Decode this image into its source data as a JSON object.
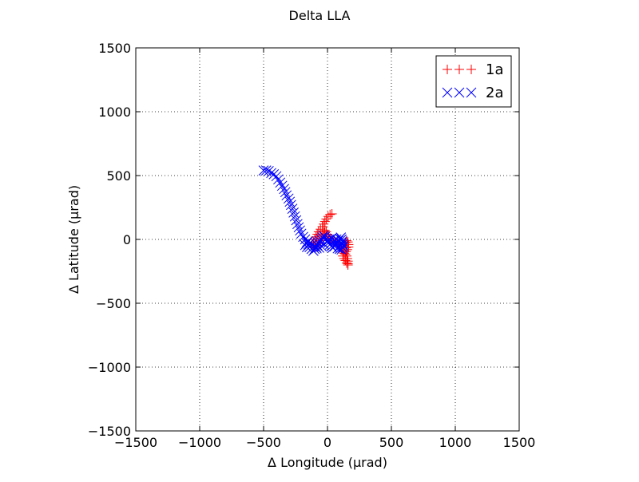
{
  "chart_data": {
    "type": "scatter",
    "title": "Delta LLA",
    "xlabel": "Δ Longitude (μrad)",
    "ylabel": "Δ Latitude (μrad)",
    "xlim": [
      -1500,
      1500
    ],
    "ylim": [
      -1500,
      1500
    ],
    "xticks": [
      -1500,
      -1000,
      -500,
      0,
      500,
      1000,
      1500
    ],
    "yticks": [
      -1500,
      -1000,
      -500,
      0,
      500,
      1000,
      1500
    ],
    "xtick_labels": [
      "−1500",
      "−1000",
      "−500",
      "0",
      "500",
      "1000",
      "1500"
    ],
    "ytick_labels": [
      "−1500",
      "−1000",
      "−500",
      "0",
      "500",
      "1000",
      "1500"
    ],
    "grid": true,
    "legend_position": "top-right",
    "series": [
      {
        "name": "1a",
        "marker": "plus",
        "color": "#ff0000",
        "points": [
          [
            35,
            200
          ],
          [
            20,
            195
          ],
          [
            5,
            180
          ],
          [
            -10,
            160
          ],
          [
            -20,
            140
          ],
          [
            -30,
            120
          ],
          [
            -40,
            100
          ],
          [
            -55,
            80
          ],
          [
            -70,
            60
          ],
          [
            -80,
            40
          ],
          [
            -90,
            20
          ],
          [
            -100,
            0
          ],
          [
            -110,
            -20
          ],
          [
            -120,
            -40
          ],
          [
            -110,
            -60
          ],
          [
            -95,
            -60
          ],
          [
            -80,
            -50
          ],
          [
            -70,
            -30
          ],
          [
            -55,
            -10
          ],
          [
            -45,
            10
          ],
          [
            -35,
            30
          ],
          [
            -25,
            50
          ],
          [
            -20,
            70
          ],
          [
            -10,
            60
          ],
          [
            0,
            40
          ],
          [
            10,
            20
          ],
          [
            20,
            10
          ],
          [
            30,
            0
          ],
          [
            45,
            -10
          ],
          [
            60,
            -20
          ],
          [
            75,
            -30
          ],
          [
            90,
            -40
          ],
          [
            100,
            -55
          ],
          [
            110,
            -70
          ],
          [
            120,
            -85
          ],
          [
            130,
            -100
          ],
          [
            140,
            -115
          ],
          [
            150,
            -130
          ],
          [
            155,
            -150
          ],
          [
            160,
            -170
          ],
          [
            160,
            -190
          ],
          [
            160,
            -200
          ],
          [
            150,
            -185
          ],
          [
            140,
            -165
          ],
          [
            130,
            -150
          ],
          [
            120,
            -130
          ],
          [
            130,
            -110
          ],
          [
            145,
            -95
          ],
          [
            155,
            -80
          ],
          [
            165,
            -60
          ],
          [
            165,
            -40
          ],
          [
            160,
            -20
          ],
          [
            150,
            -10
          ],
          [
            140,
            -25
          ],
          [
            130,
            -45
          ],
          [
            145,
            -65
          ]
        ]
      },
      {
        "name": "2a",
        "marker": "x",
        "color": "#0000ff",
        "points": [
          [
            -500,
            540
          ],
          [
            -480,
            540
          ],
          [
            -460,
            535
          ],
          [
            -440,
            520
          ],
          [
            -420,
            510
          ],
          [
            -400,
            495
          ],
          [
            -385,
            470
          ],
          [
            -370,
            445
          ],
          [
            -355,
            420
          ],
          [
            -340,
            395
          ],
          [
            -330,
            370
          ],
          [
            -320,
            345
          ],
          [
            -305,
            320
          ],
          [
            -295,
            295
          ],
          [
            -285,
            270
          ],
          [
            -275,
            240
          ],
          [
            -265,
            210
          ],
          [
            -255,
            180
          ],
          [
            -245,
            150
          ],
          [
            -235,
            120
          ],
          [
            -225,
            95
          ],
          [
            -215,
            70
          ],
          [
            -205,
            45
          ],
          [
            -190,
            20
          ],
          [
            -175,
            0
          ],
          [
            -160,
            -20
          ],
          [
            -150,
            -40
          ],
          [
            -140,
            -60
          ],
          [
            -125,
            -75
          ],
          [
            -110,
            -90
          ],
          [
            -100,
            -75
          ],
          [
            -90,
            -60
          ],
          [
            -80,
            -45
          ],
          [
            -70,
            -30
          ],
          [
            -60,
            -15
          ],
          [
            -50,
            0
          ],
          [
            -40,
            15
          ],
          [
            -30,
            30
          ],
          [
            -20,
            20
          ],
          [
            -10,
            5
          ],
          [
            0,
            -10
          ],
          [
            10,
            -25
          ],
          [
            20,
            -40
          ],
          [
            30,
            -55
          ],
          [
            40,
            -65
          ],
          [
            55,
            -55
          ],
          [
            65,
            -40
          ],
          [
            75,
            -25
          ],
          [
            85,
            -10
          ],
          [
            95,
            5
          ],
          [
            105,
            15
          ],
          [
            110,
            0
          ],
          [
            115,
            -15
          ],
          [
            110,
            -30
          ],
          [
            100,
            -45
          ],
          [
            90,
            -60
          ],
          [
            80,
            -70
          ],
          [
            95,
            -75
          ],
          [
            110,
            -80
          ],
          [
            120,
            -65
          ],
          [
            125,
            -50
          ],
          [
            120,
            -35
          ],
          [
            70,
            0
          ],
          [
            50,
            -10
          ],
          [
            35,
            10
          ],
          [
            15,
            0
          ],
          [
            -5,
            -20
          ],
          [
            -25,
            -40
          ],
          [
            -45,
            -55
          ],
          [
            -65,
            -65
          ],
          [
            -85,
            -70
          ],
          [
            -105,
            -55
          ],
          [
            -120,
            -40
          ],
          [
            -135,
            -25
          ],
          [
            -150,
            -15
          ],
          [
            -165,
            -30
          ],
          [
            -175,
            -45
          ],
          [
            -160,
            -60
          ]
        ]
      }
    ]
  }
}
